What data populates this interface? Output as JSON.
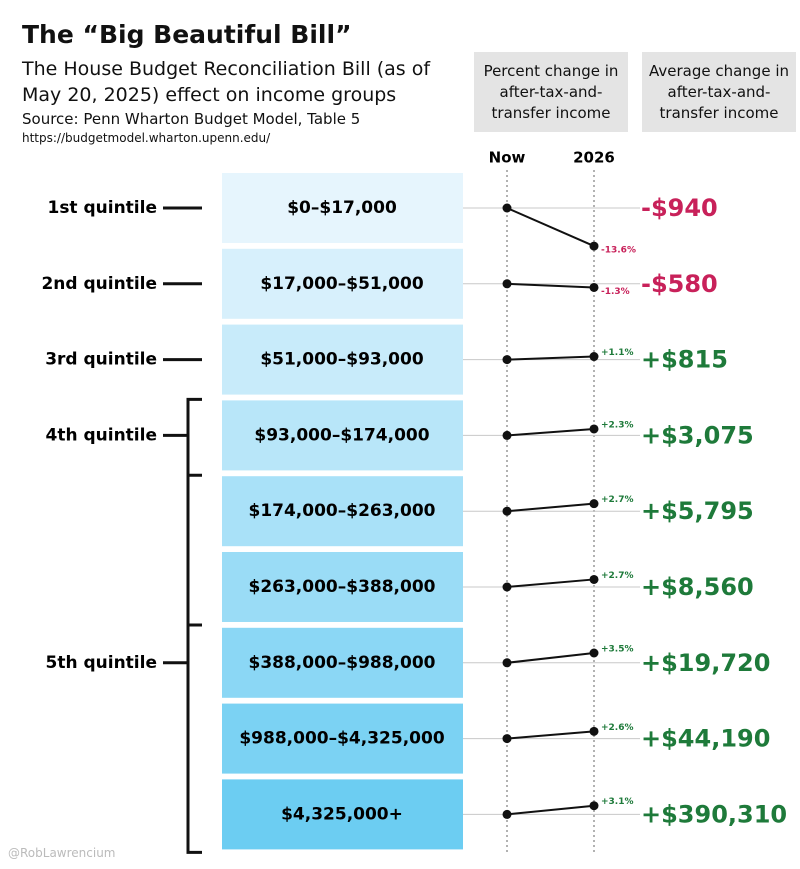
{
  "chart_data": {
    "type": "slope",
    "title": "The “Big Beautiful Bill”",
    "subtitle": "The House Budget Reconciliation Bill (as of May 20, 2025) effect on income groups",
    "source": "Source: Penn Wharton Budget Model, Table 5",
    "url": "https://budgetmodel.wharton.upenn.edu/",
    "credit": "@RobLawrencium",
    "x_labels": [
      "Now",
      "2026"
    ],
    "categories": [
      "$0–$17,000",
      "$17,000–$51,000",
      "$51,000–$93,000",
      "$93,000–$174,000",
      "$174,000–$263,000",
      "$263,000–$388,000",
      "$388,000–$988,000",
      "$988,000–$4,325,000",
      "$4,325,000+"
    ],
    "group_labels": [
      "1st quintile",
      "2nd quintile",
      "3rd quintile",
      "4th quintile",
      null,
      null,
      "5th quintile",
      null,
      null
    ],
    "series": [
      {
        "name": "Percent change in after-tax-and-transfer income",
        "values": [
          -13.6,
          -1.3,
          1.1,
          2.3,
          2.7,
          2.7,
          3.5,
          2.6,
          3.1
        ],
        "value_labels": [
          "-13.6%",
          "-1.3%",
          "+1.1%",
          "+2.3%",
          "+2.7%",
          "+2.7%",
          "+3.5%",
          "+2.6%",
          "+3.1%"
        ]
      },
      {
        "name": "Average change in after-tax-and-transfer income",
        "values": [
          -940,
          -580,
          815,
          3075,
          5795,
          8560,
          19720,
          44190,
          390310
        ],
        "value_labels": [
          "-$940",
          "-$580",
          "+$815",
          "+$3,075",
          "+$5,795",
          "+$8,560",
          "+$19,720",
          "+$44,190",
          "+$390,310"
        ]
      }
    ],
    "negative_color": "#c8215a",
    "positive_color": "#1e7a3a"
  }
}
